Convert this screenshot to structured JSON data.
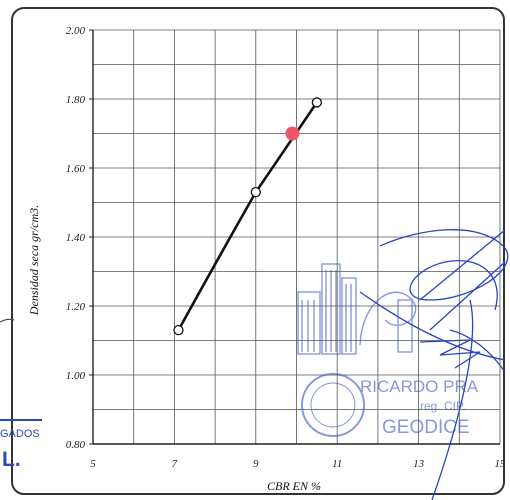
{
  "chart_data": {
    "type": "line",
    "title": "",
    "xlabel": "CBR EN %",
    "ylabel": "Densidad seca gr/cm3.",
    "xlim": [
      5,
      15
    ],
    "ylim": [
      0.8,
      2.0
    ],
    "x_ticks": [
      "5",
      "7",
      "9",
      "11",
      "13",
      "15"
    ],
    "y_ticks": [
      "0.80",
      "1.00",
      "1.20",
      "1.40",
      "1.60",
      "1.80",
      "2.00"
    ],
    "grid": true,
    "series": [
      {
        "values": [
          {
            "x": 7.1,
            "y": 1.13
          },
          {
            "x": 9.0,
            "y": 1.53
          },
          {
            "x": 10.5,
            "y": 1.79
          }
        ],
        "marker": "open-circle",
        "color": "#111111"
      }
    ],
    "highlight_point": {
      "x": 9.9,
      "y": 1.7,
      "color": "#f0556a"
    }
  },
  "stamp": {
    "left_text_1": "GADOS",
    "left_text_2": "L.",
    "line_1": "RICARDO PRA",
    "line_2": "reg. CIP.",
    "line_3": "GEODICE",
    "color": "#3a55c8"
  }
}
